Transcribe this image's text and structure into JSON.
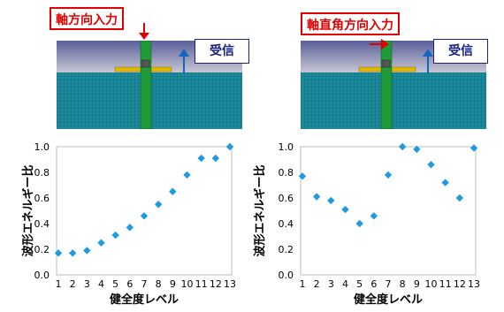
{
  "colors": {
    "marker": "#1f9be0",
    "callout": "#e00000",
    "receive_arrow": "#1565c0",
    "mesh": "#1a8a9c",
    "sky_top": "#5b5f9a",
    "sky_bottom": "#c7c7d3",
    "pile": "#1e9a38",
    "plate": "#e3b800"
  },
  "panels": [
    {
      "callout": "軸方向入力",
      "callout_arrow": "down-arrow",
      "receive_label": "受信"
    },
    {
      "callout": "軸直角方向入力",
      "callout_arrow": "right-arrow",
      "receive_label": "受信"
    }
  ],
  "chart_data": [
    {
      "type": "scatter",
      "ylabel": "波形エネルギー比",
      "xlabel": "健全度レベル",
      "x": [
        1,
        2,
        3,
        4,
        5,
        6,
        7,
        8,
        9,
        10,
        11,
        12,
        13
      ],
      "y": [
        0.17,
        0.17,
        0.19,
        0.25,
        0.31,
        0.37,
        0.46,
        0.55,
        0.65,
        0.78,
        0.91,
        0.91,
        1.0
      ],
      "ylim": [
        0,
        1.0
      ],
      "yticks": [
        "0.0",
        "0.2",
        "0.4",
        "0.6",
        "0.8",
        "1.0"
      ],
      "xticks": [
        "1",
        "2",
        "3",
        "4",
        "5",
        "6",
        "7",
        "8",
        "9",
        "10",
        "11",
        "12",
        "13"
      ],
      "grid": false
    },
    {
      "type": "scatter",
      "ylabel": "波形エネルギー比",
      "xlabel": "健全度レベル",
      "x": [
        1,
        2,
        3,
        4,
        5,
        6,
        7,
        8,
        9,
        10,
        11,
        12,
        13
      ],
      "y": [
        0.77,
        0.61,
        0.58,
        0.51,
        0.4,
        0.46,
        0.78,
        1.0,
        0.98,
        0.86,
        0.72,
        0.6,
        0.99
      ],
      "ylim": [
        0,
        1.0
      ],
      "yticks": [
        "0.0",
        "0.2",
        "0.4",
        "0.6",
        "0.8",
        "1.0"
      ],
      "xticks": [
        "1",
        "2",
        "3",
        "4",
        "5",
        "6",
        "7",
        "8",
        "9",
        "10",
        "11",
        "12",
        "13"
      ],
      "grid": false
    }
  ]
}
